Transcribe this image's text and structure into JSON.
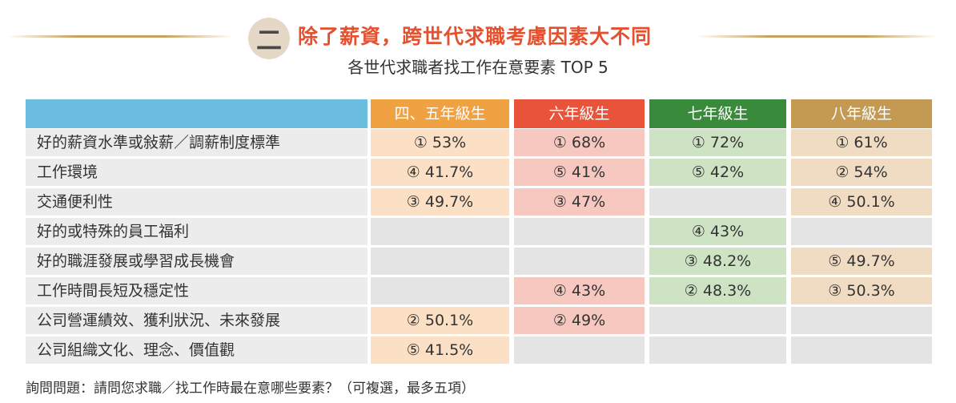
{
  "header": {
    "badge": "二",
    "title": "除了薪資，跨世代求職考慮因素大不同",
    "subtitle": "各世代求職者找工作在意要素 TOP 5"
  },
  "colors": {
    "generation_header": [
      "#f0a142",
      "#e8533a",
      "#3a8a3c",
      "#c49a52"
    ],
    "generation_fill": [
      "#fbe0c6",
      "#f6c8c0",
      "#cde3c4",
      "#f0dcc2"
    ],
    "label_header": "#6bbde0",
    "empty": "#e4e4e4"
  },
  "chart_data": {
    "type": "table",
    "columns": [
      "四、五年級生",
      "六年級生",
      "七年級生",
      "八年級生"
    ],
    "rows": [
      {
        "label": "好的薪資水準或敍薪／調薪制度標準",
        "cells": [
          "① 53%",
          "① 68%",
          "① 72%",
          "① 61%"
        ]
      },
      {
        "label": "工作環境",
        "cells": [
          "④ 41.7%",
          "⑤ 41%",
          "⑤ 42%",
          "② 54%"
        ]
      },
      {
        "label": "交通便利性",
        "cells": [
          "③ 49.7%",
          "③ 47%",
          "",
          "④ 50.1%"
        ]
      },
      {
        "label": "好的或特殊的員工福利",
        "cells": [
          "",
          "",
          "④ 43%",
          ""
        ]
      },
      {
        "label": "好的職涯發展或學習成長機會",
        "cells": [
          "",
          "",
          "③ 48.2%",
          "⑤ 49.7%"
        ]
      },
      {
        "label": "工作時間長短及穩定性",
        "cells": [
          "",
          "④ 43%",
          "② 48.3%",
          "③ 50.3%"
        ]
      },
      {
        "label": "公司營運績效、獲利狀況、未來發展",
        "cells": [
          "② 50.1%",
          "② 49%",
          "",
          ""
        ]
      },
      {
        "label": "公司組織文化、理念、價值觀",
        "cells": [
          "⑤ 41.5%",
          "",
          "",
          ""
        ]
      }
    ]
  },
  "footnote": "詢問問題：請問您求職／找工作時最在意哪些要素？（可複選，最多五項）"
}
